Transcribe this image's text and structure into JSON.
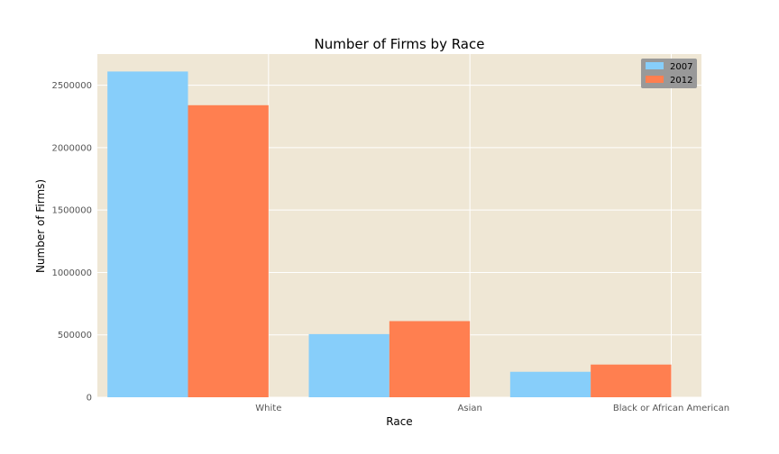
{
  "chart_data": {
    "type": "bar",
    "title": "Number of Firms by Race",
    "xlabel": "Race",
    "ylabel": "Number of Firms)",
    "categories": [
      "White",
      "Asian",
      "Black or African American"
    ],
    "series": [
      {
        "name": "2007",
        "values": [
          2610000,
          506000,
          204000
        ],
        "color": "#87cefa"
      },
      {
        "name": "2012",
        "values": [
          2340000,
          610000,
          262000
        ],
        "color": "#ff7f50"
      }
    ],
    "ylim": [
      0,
      2750000
    ],
    "yticks": [
      0,
      500000,
      1000000,
      1500000,
      2000000,
      2500000
    ],
    "ytick_labels": [
      "0",
      "500000",
      "1000000",
      "1500000",
      "2000000",
      "2500000"
    ],
    "grid": true,
    "legend_position": "top-right",
    "colors": {
      "plot_background": "#efe7d5",
      "grid": "#ffffff",
      "legend_background": "#999999"
    }
  }
}
